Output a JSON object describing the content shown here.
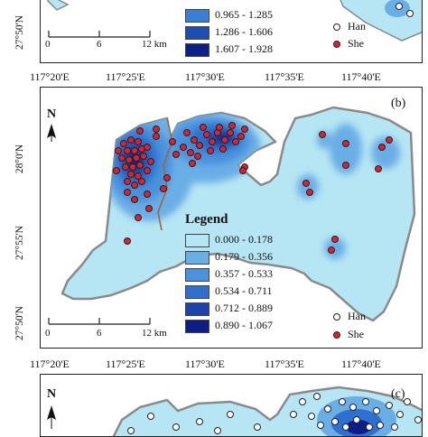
{
  "panel_a": {
    "legend_ranges": [
      "0.965 - 1.285",
      "1.286 - 1.606",
      "1.607 - 1.928"
    ],
    "legend_colors": [
      "#3b7fd4",
      "#1f4eb3",
      "#0f1f86"
    ],
    "lat_label": "27°50'N",
    "scale": [
      "0",
      "6",
      "12 km"
    ],
    "marker_labels": [
      "Han",
      "She"
    ]
  },
  "panel_b": {
    "panel_tag": "(b)",
    "top_lon_labels": [
      "117°20'E",
      "117°25'E",
      "117°30'E",
      "117°35'E",
      "117°40'E"
    ],
    "lat_labels": [
      "28°0'N",
      "27°55'N",
      "27°50'N"
    ],
    "north": "N",
    "legend_title": "Legend",
    "legend_ranges": [
      "0.000 - 0.178",
      "0.179 - 0.356",
      "0.357 - 0.533",
      "0.534 - 0.711",
      "0.712 - 0.889",
      "0.890 - 1.067"
    ],
    "legend_colors": [
      "#b6e6f3",
      "#6aaee6",
      "#4a92dd",
      "#2f6fce",
      "#1d44ab",
      "#0d1c86"
    ],
    "scale": [
      "0",
      "6",
      "12 km"
    ],
    "marker_labels": [
      "Han",
      "She"
    ],
    "marker_colors": {
      "han": "#ffffff",
      "she": "#e0202a"
    }
  },
  "panel_c": {
    "panel_tag": "(c)",
    "top_lon_labels": [
      "117°20'E",
      "117°25'E",
      "117°30'E",
      "117°35'E",
      "117°40'E"
    ],
    "north": "N"
  }
}
